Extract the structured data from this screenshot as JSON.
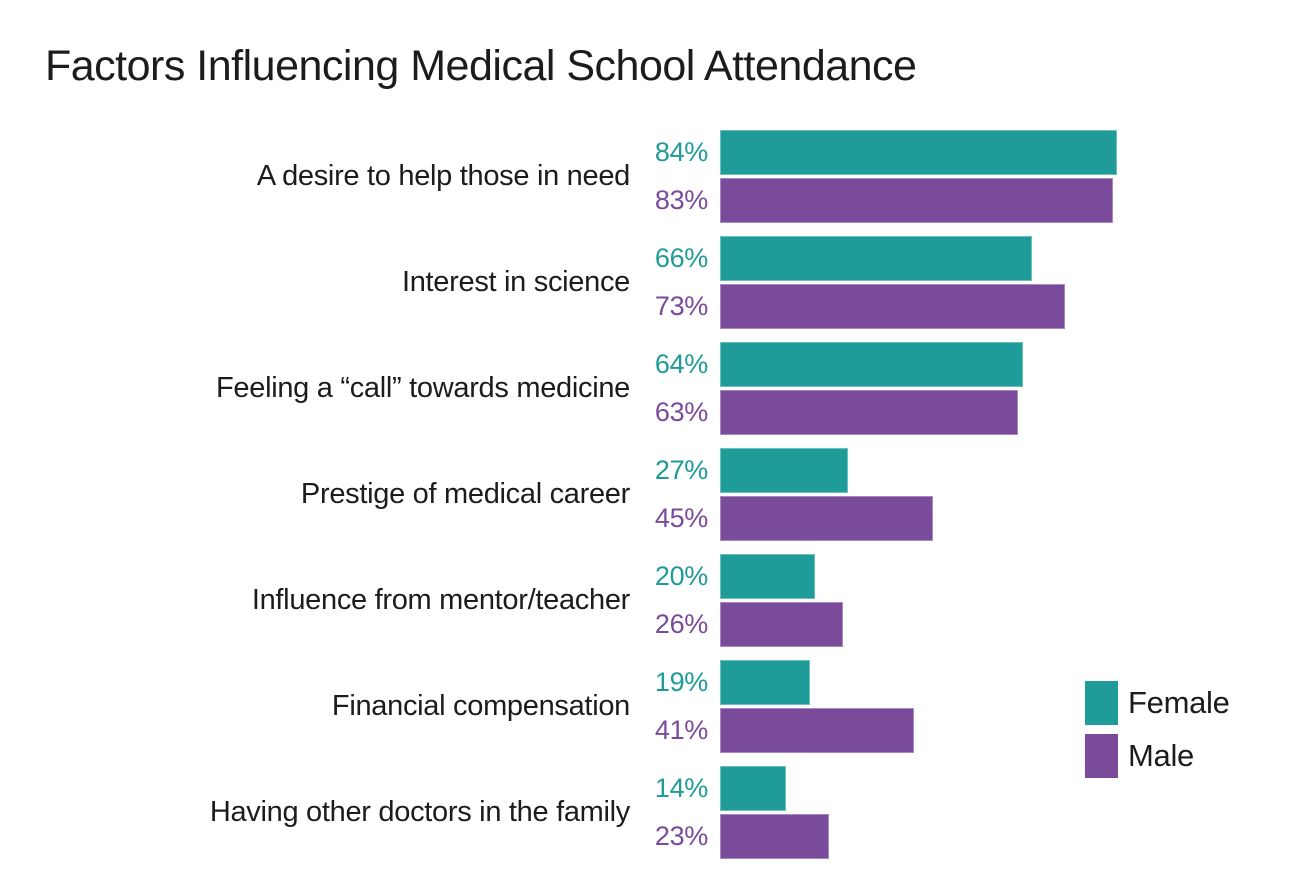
{
  "chart_data": {
    "type": "bar",
    "orientation": "horizontal",
    "title": "Factors Influencing Medical School Attendance",
    "categories": [
      "A desire to help those in need",
      "Interest in science",
      "Feeling a “call” towards medicine",
      "Prestige of medical career",
      "Influence from mentor/teacher",
      "Financial compensation",
      "Having other doctors in the family"
    ],
    "series": [
      {
        "name": "Female",
        "color": "#1F9B99",
        "values": [
          84,
          66,
          64,
          27,
          20,
          19,
          14
        ]
      },
      {
        "name": "Male",
        "color": "#7A4A9B",
        "values": [
          83,
          73,
          63,
          45,
          26,
          41,
          23
        ]
      }
    ],
    "data_label_format": "{value}%",
    "xlabel": "",
    "ylabel": "",
    "xlim": [
      0,
      100
    ],
    "grid": false,
    "axis_ticks_visible": false,
    "legend_position": "right-bottom",
    "background": "#FFFFFF",
    "text_color": "#1C1C1C"
  }
}
